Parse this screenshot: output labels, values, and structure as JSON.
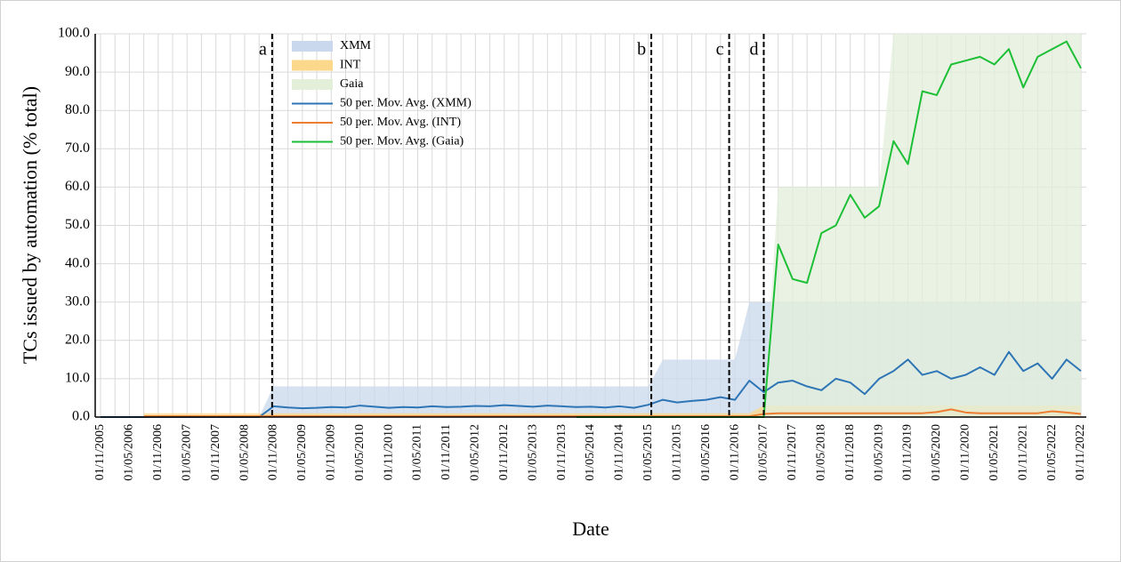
{
  "chart_data": {
    "type": "line",
    "x_label": "Date",
    "y_label": "TCs issued by automation (% total)",
    "categories": [
      "01/11/2005",
      null,
      "01/05/2006",
      null,
      "01/11/2006",
      null,
      "01/05/2007",
      null,
      "01/11/2007",
      null,
      "01/05/2008",
      null,
      "01/11/2008",
      null,
      "01/05/2009",
      null,
      "01/11/2009",
      null,
      "01/05/2010",
      null,
      "01/11/2010",
      null,
      "01/05/2011",
      null,
      "01/11/2011",
      null,
      "01/05/2012",
      null,
      "01/11/2012",
      null,
      "01/05/2013",
      null,
      "01/11/2013",
      null,
      "01/05/2014",
      null,
      "01/11/2014",
      null,
      "01/05/2015",
      null,
      "01/11/2015",
      null,
      "01/05/2016",
      null,
      "01/11/2016",
      null,
      "01/05/2017",
      null,
      "01/11/2017",
      null,
      "01/05/2018",
      null,
      "01/11/2018",
      null,
      "01/05/2019",
      null,
      "01/11/2019",
      null,
      "01/05/2020",
      null,
      "01/11/2020",
      null,
      "01/05/2021",
      null,
      "01/11/2021",
      null,
      "01/05/2022",
      null,
      "01/11/2022"
    ],
    "series": [
      {
        "name": "XMM",
        "style": "area",
        "color": "#c9d8ec",
        "values": [
          0,
          0,
          0,
          0,
          0,
          0,
          0,
          0,
          0,
          0,
          0,
          0,
          8,
          8,
          8,
          8,
          8,
          8,
          8,
          8,
          8,
          8,
          8,
          8,
          8,
          8,
          8,
          8,
          8,
          8,
          8,
          8,
          8,
          8,
          8,
          8,
          8,
          8,
          8,
          15,
          15,
          15,
          15,
          15,
          15,
          30,
          30,
          30,
          30,
          30,
          30,
          30,
          30,
          30,
          30,
          30,
          30,
          30,
          30,
          30,
          30,
          30,
          30,
          30,
          30,
          30,
          30,
          30,
          30
        ]
      },
      {
        "name": "INT",
        "style": "area",
        "color": "#fcd98a",
        "values": [
          null,
          null,
          null,
          1,
          1,
          1,
          1,
          1,
          1,
          1,
          1,
          1,
          1,
          1,
          1,
          1,
          1,
          1,
          1,
          1,
          1,
          1,
          1,
          1,
          1,
          1,
          1,
          1,
          1,
          1,
          1,
          1,
          1,
          1,
          1,
          1,
          1,
          1,
          1,
          1,
          1,
          1,
          1,
          1,
          1,
          1,
          3,
          3,
          3,
          3,
          3,
          3,
          3,
          3,
          3,
          3,
          3,
          3,
          3,
          3,
          3,
          3,
          3,
          3,
          3,
          3,
          3,
          3,
          3
        ]
      },
      {
        "name": "Gaia",
        "style": "area",
        "color": "#e3efd9",
        "values": [
          null,
          null,
          null,
          null,
          null,
          null,
          null,
          null,
          null,
          null,
          null,
          null,
          null,
          null,
          null,
          null,
          null,
          null,
          null,
          null,
          null,
          null,
          null,
          null,
          null,
          null,
          null,
          null,
          null,
          null,
          null,
          null,
          null,
          null,
          null,
          null,
          null,
          null,
          null,
          null,
          null,
          null,
          null,
          null,
          null,
          null,
          0,
          60,
          60,
          60,
          60,
          60,
          60,
          60,
          60,
          100,
          100,
          100,
          100,
          100,
          100,
          100,
          100,
          100,
          100,
          100,
          100,
          100,
          100
        ]
      },
      {
        "name": "50 per. Mov. Avg. (XMM)",
        "style": "line",
        "color": "#2e75b6",
        "values": [
          0,
          0,
          0,
          0,
          0,
          0,
          0,
          0,
          0,
          0,
          0,
          0,
          2.8,
          2.5,
          2.3,
          2.4,
          2.6,
          2.5,
          3.0,
          2.7,
          2.4,
          2.6,
          2.5,
          2.8,
          2.6,
          2.7,
          2.9,
          2.8,
          3.1,
          2.9,
          2.7,
          3.0,
          2.8,
          2.6,
          2.7,
          2.5,
          2.8,
          2.4,
          3.2,
          4.5,
          3.8,
          4.2,
          4.5,
          5.2,
          4.5,
          9.5,
          6.5,
          9.0,
          9.5,
          8.0,
          7.0,
          10.0,
          9.0,
          6.0,
          10.0,
          12.0,
          15.0,
          11.0,
          12.0,
          10.0,
          11.0,
          13.0,
          11.0,
          17.0,
          12.0,
          14.0,
          10.0,
          15.0,
          12.0
        ]
      },
      {
        "name": "50 per. Mov. Avg. (INT)",
        "style": "line",
        "color": "#ed7d31",
        "values": [
          null,
          null,
          null,
          0.2,
          0.2,
          0.2,
          0.2,
          0.2,
          0.2,
          0.2,
          0.2,
          0.2,
          0.2,
          0.2,
          0.2,
          0.2,
          0.2,
          0.2,
          0.2,
          0.2,
          0.2,
          0.2,
          0.2,
          0.2,
          0.2,
          0.2,
          0.2,
          0.2,
          0.2,
          0.2,
          0.2,
          0.2,
          0.2,
          0.2,
          0.2,
          0.2,
          0.2,
          0.2,
          0.2,
          0.2,
          0.2,
          0.2,
          0.2,
          0.2,
          0.2,
          0.2,
          0.8,
          1.0,
          1.0,
          1.0,
          1.0,
          1.0,
          1.0,
          1.0,
          1.0,
          1.0,
          1.0,
          1.0,
          1.3,
          2.0,
          1.2,
          1.0,
          1.0,
          1.0,
          1.0,
          1.0,
          1.5,
          1.2,
          0.8
        ]
      },
      {
        "name": "50 per. Mov. Avg. (Gaia)",
        "style": "line",
        "color": "#1cbf36",
        "values": [
          null,
          null,
          null,
          null,
          null,
          null,
          null,
          null,
          null,
          null,
          null,
          null,
          null,
          null,
          null,
          null,
          null,
          null,
          null,
          null,
          null,
          null,
          null,
          null,
          null,
          null,
          null,
          null,
          null,
          null,
          null,
          null,
          null,
          0,
          0,
          0,
          0,
          0,
          0,
          0,
          0,
          0,
          0,
          0,
          0,
          0,
          0,
          45,
          36,
          35,
          48,
          50,
          58,
          52,
          55,
          72,
          66,
          85,
          84,
          92,
          93,
          94,
          92,
          96,
          86,
          94,
          96,
          98,
          91
        ]
      }
    ],
    "annotations": [
      {
        "text": "a",
        "x": 11.9
      },
      {
        "text": "b",
        "x": 38.2
      },
      {
        "text": "c",
        "x": 43.6
      },
      {
        "text": "d",
        "x": 46.0
      }
    ],
    "ylim": [
      0,
      100
    ],
    "yticks": [
      {
        "value": 0,
        "label": "0.0"
      },
      {
        "value": 10,
        "label": "10.0"
      },
      {
        "value": 20,
        "label": "20.0"
      },
      {
        "value": 30,
        "label": "30.0"
      },
      {
        "value": 40,
        "label": "40.0"
      },
      {
        "value": 50,
        "label": "50.0"
      },
      {
        "value": 60,
        "label": "60.0"
      },
      {
        "value": 70,
        "label": "70.0"
      },
      {
        "value": 80,
        "label": "80.0"
      },
      {
        "value": 90,
        "label": "90.0"
      },
      {
        "value": 100,
        "label": "100.0"
      }
    ],
    "grid": true,
    "legend": "upper left"
  }
}
